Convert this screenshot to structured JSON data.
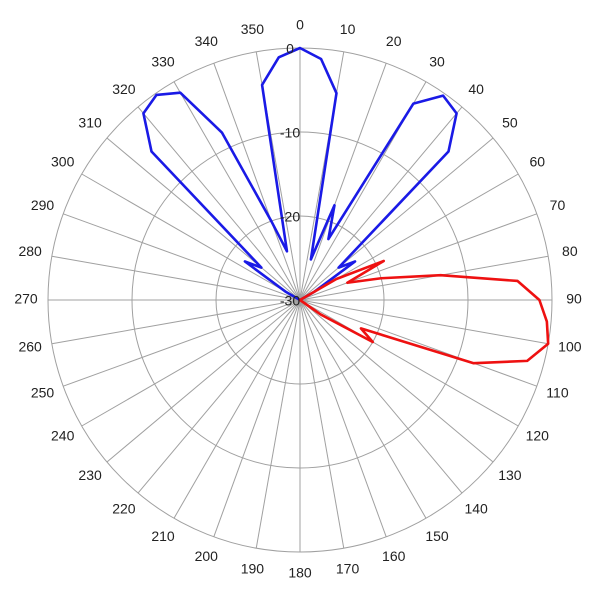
{
  "chart_data": {
    "type": "polar",
    "theta": [
      0,
      5,
      10,
      15,
      20,
      25,
      30,
      35,
      40,
      45,
      50,
      55,
      60,
      65,
      70,
      75,
      80,
      85,
      90,
      95,
      100,
      105,
      110,
      115,
      120,
      125,
      130,
      135,
      140,
      145,
      150,
      155,
      160,
      165,
      170,
      175,
      180,
      185,
      190,
      195,
      200,
      205,
      210,
      215,
      220,
      225,
      230,
      235,
      240,
      245,
      250,
      255,
      260,
      265,
      270,
      275,
      280,
      285,
      290,
      295,
      300,
      305,
      310,
      315,
      320,
      325,
      330,
      335,
      340,
      345,
      350,
      355
    ],
    "series": [
      {
        "color": "#1a1ae6",
        "values": [
          0,
          -1.2,
          -5,
          -25,
          -18,
          -22,
          -3,
          -0.3,
          -1,
          -5,
          -24,
          -22,
          -28,
          -30,
          -30,
          -30,
          -30,
          -30,
          -30,
          -30,
          -30,
          -30,
          -30,
          -30,
          -30,
          -30,
          -30,
          -30,
          -30,
          -30,
          -30,
          -30,
          -30,
          -30,
          -30,
          -30,
          -30,
          -30,
          -30,
          -30,
          -30,
          -30,
          -30,
          -30,
          -30,
          -30,
          -30,
          -30,
          -30,
          -30,
          -30,
          -30,
          -30,
          -30,
          -30,
          -30,
          -30,
          -30,
          -30,
          -30,
          -28,
          -22,
          -24,
          -5,
          -1,
          -0.2,
          -1.5,
          -8,
          -20,
          -24,
          -4,
          -1
        ]
      },
      {
        "color": "#ee1111",
        "values": [
          -30,
          -30,
          -30,
          -30,
          -30,
          -30,
          -30,
          -30,
          -30,
          -30,
          -30,
          -30,
          -25,
          -19,
          -24,
          -20,
          -13,
          -4,
          -1.5,
          -0.5,
          0,
          -2,
          -8,
          -22,
          -20,
          -27,
          -30,
          -30,
          -30,
          -30,
          -30,
          -30,
          -30,
          -30,
          -30,
          -30,
          -30,
          -30,
          -30,
          -30,
          -30,
          -30,
          -30,
          -30,
          -30,
          -30,
          -30,
          -30,
          -30,
          -30,
          -30,
          -30,
          -30,
          -30,
          -30,
          -30,
          -30,
          -30,
          -30,
          -30,
          -30,
          -30,
          -30,
          -30,
          -30,
          -30,
          -30,
          -30,
          -30,
          -30,
          -30,
          -30
        ]
      }
    ],
    "rlim": [
      -30,
      0
    ],
    "rticks": [
      -30,
      -20,
      -10,
      0
    ],
    "thetaticks": [
      0,
      10,
      20,
      30,
      40,
      50,
      60,
      70,
      80,
      90,
      100,
      110,
      120,
      130,
      140,
      150,
      160,
      170,
      180,
      190,
      200,
      210,
      220,
      230,
      240,
      250,
      260,
      270,
      280,
      290,
      300,
      310,
      320,
      330,
      340,
      350
    ],
    "grid": true
  }
}
